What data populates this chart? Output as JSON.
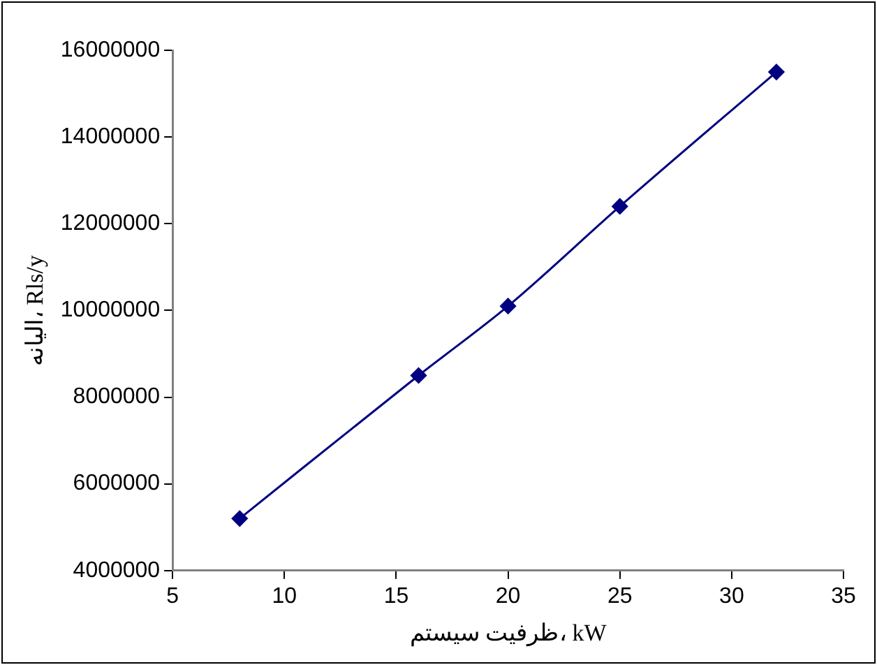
{
  "chart_data": {
    "type": "line",
    "xlabel": "ظرفیت سیستم، kW",
    "ylabel": "الیانه، Rls/y",
    "x": [
      8,
      16,
      20,
      25,
      32
    ],
    "series": [
      {
        "color": "#000080",
        "values": [
          5200000,
          8500000,
          10100000,
          12400000,
          15500000
        ]
      }
    ],
    "xlim": [
      5,
      35
    ],
    "xticks": [
      5,
      10,
      15,
      20,
      25,
      30,
      35
    ],
    "ylim": [
      4000000,
      16000000
    ],
    "yticks": [
      4000000,
      6000000,
      8000000,
      10000000,
      12000000,
      14000000,
      16000000
    ],
    "grid": false,
    "legend": false,
    "marker": "diamond",
    "line_style": "solid"
  }
}
